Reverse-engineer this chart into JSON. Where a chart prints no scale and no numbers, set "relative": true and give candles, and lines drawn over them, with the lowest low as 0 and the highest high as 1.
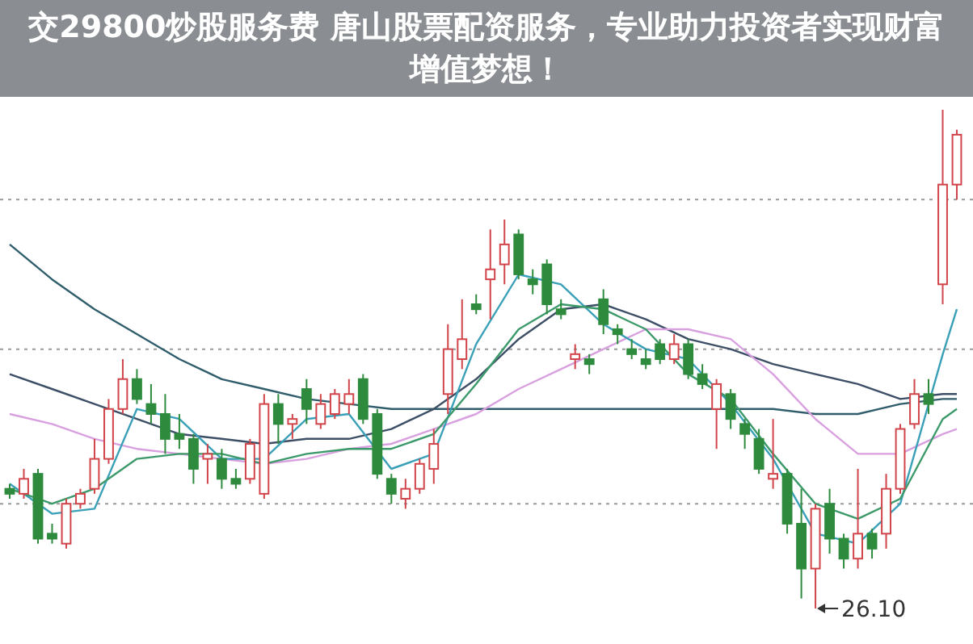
{
  "chart_data": {
    "type": "candlestick",
    "title": "交29800炒股服务费 唐山股票配资服务，专业助力投资者实现财富增值梦想！",
    "relative": true,
    "categories": [
      null,
      null,
      null,
      null,
      null,
      null,
      null,
      null,
      null,
      null,
      null,
      null,
      null,
      null,
      null,
      null,
      null,
      null,
      null,
      null,
      null,
      null,
      null,
      null,
      null,
      null,
      null,
      null,
      null,
      null,
      null,
      null,
      null,
      null,
      null,
      null,
      null,
      null,
      null,
      null,
      null,
      null,
      null,
      null,
      null,
      null,
      null,
      null,
      null,
      null,
      null,
      null,
      null,
      null,
      null,
      null,
      null,
      null,
      null,
      null,
      null,
      null,
      null,
      null,
      null,
      null,
      null,
      null
    ],
    "ohlc": [
      [
        0.24,
        0.25,
        0.22,
        0.23
      ],
      [
        0.23,
        0.28,
        0.22,
        0.26
      ],
      [
        0.27,
        0.28,
        0.13,
        0.14
      ],
      [
        0.15,
        0.17,
        0.13,
        0.14
      ],
      [
        0.13,
        0.22,
        0.12,
        0.21
      ],
      [
        0.21,
        0.24,
        0.2,
        0.23
      ],
      [
        0.24,
        0.34,
        0.23,
        0.3
      ],
      [
        0.3,
        0.42,
        0.29,
        0.4
      ],
      [
        0.4,
        0.5,
        0.39,
        0.46
      ],
      [
        0.46,
        0.48,
        0.41,
        0.42
      ],
      [
        0.41,
        0.45,
        0.37,
        0.39
      ],
      [
        0.39,
        0.43,
        0.31,
        0.34
      ],
      [
        0.35,
        0.39,
        0.32,
        0.34
      ],
      [
        0.34,
        0.35,
        0.25,
        0.28
      ],
      [
        0.3,
        0.33,
        0.25,
        0.31
      ],
      [
        0.3,
        0.32,
        0.24,
        0.26
      ],
      [
        0.26,
        0.28,
        0.24,
        0.25
      ],
      [
        0.26,
        0.34,
        0.25,
        0.33
      ],
      [
        0.23,
        0.43,
        0.22,
        0.41
      ],
      [
        0.41,
        0.43,
        0.33,
        0.37
      ],
      [
        0.37,
        0.39,
        0.34,
        0.38
      ],
      [
        0.44,
        0.46,
        0.37,
        0.4
      ],
      [
        0.37,
        0.43,
        0.36,
        0.41
      ],
      [
        0.39,
        0.44,
        0.38,
        0.43
      ],
      [
        0.41,
        0.46,
        0.39,
        0.43
      ],
      [
        0.46,
        0.47,
        0.37,
        0.38
      ],
      [
        0.39,
        0.4,
        0.26,
        0.27
      ],
      [
        0.26,
        0.27,
        0.21,
        0.23
      ],
      [
        0.22,
        0.26,
        0.2,
        0.24
      ],
      [
        0.24,
        0.3,
        0.23,
        0.29
      ],
      [
        0.28,
        0.36,
        0.25,
        0.33
      ],
      [
        0.43,
        0.57,
        0.39,
        0.52
      ],
      [
        0.5,
        0.62,
        0.48,
        0.54
      ],
      [
        0.61,
        0.63,
        0.59,
        0.6
      ],
      [
        0.66,
        0.76,
        0.58,
        0.68
      ],
      [
        0.69,
        0.78,
        0.65,
        0.73
      ],
      [
        0.75,
        0.76,
        0.66,
        0.67
      ],
      [
        0.66,
        0.68,
        0.63,
        0.65
      ],
      [
        0.69,
        0.7,
        0.59,
        0.61
      ],
      [
        0.6,
        0.62,
        0.58,
        0.59
      ],
      [
        0.5,
        0.53,
        0.48,
        0.51
      ],
      [
        0.5,
        0.51,
        0.47,
        0.49
      ],
      [
        0.62,
        0.64,
        0.55,
        0.57
      ],
      [
        0.56,
        0.57,
        0.53,
        0.55
      ],
      [
        0.52,
        0.54,
        0.5,
        0.51
      ],
      [
        0.5,
        0.52,
        0.48,
        0.49
      ],
      [
        0.53,
        0.54,
        0.49,
        0.5
      ],
      [
        0.5,
        0.55,
        0.49,
        0.53
      ],
      [
        0.53,
        0.54,
        0.46,
        0.47
      ],
      [
        0.47,
        0.49,
        0.44,
        0.45
      ],
      [
        0.4,
        0.46,
        0.32,
        0.45
      ],
      [
        0.43,
        0.44,
        0.36,
        0.38
      ],
      [
        0.37,
        0.38,
        0.32,
        0.35
      ],
      [
        0.34,
        0.36,
        0.27,
        0.28
      ],
      [
        0.26,
        0.38,
        0.24,
        0.27
      ],
      [
        0.27,
        0.28,
        0.15,
        0.17
      ],
      [
        0.17,
        0.24,
        0.02,
        0.08
      ],
      [
        0.08,
        0.21,
        0.0,
        0.2
      ],
      [
        0.21,
        0.24,
        0.11,
        0.14
      ],
      [
        0.14,
        0.15,
        0.08,
        0.1
      ],
      [
        0.1,
        0.28,
        0.08,
        0.15
      ],
      [
        0.15,
        0.16,
        0.1,
        0.12
      ],
      [
        0.15,
        0.27,
        0.12,
        0.24
      ],
      [
        0.24,
        0.37,
        0.23,
        0.36
      ],
      [
        0.37,
        0.46,
        0.36,
        0.43
      ],
      [
        0.43,
        0.46,
        0.39,
        0.41
      ],
      [
        0.65,
        1.0,
        0.61,
        0.85
      ],
      [
        0.85,
        0.96,
        0.82,
        0.95
      ]
    ],
    "series": [
      {
        "type": "line",
        "color": "#2f5d6b",
        "values": [
          0.73,
          null,
          null,
          0.66,
          null,
          null,
          0.6,
          null,
          null,
          0.55,
          null,
          null,
          0.5,
          null,
          null,
          0.46,
          null,
          null,
          0.44,
          null,
          null,
          0.42,
          null,
          null,
          0.41,
          null,
          null,
          0.4,
          null,
          null,
          0.4,
          null,
          null,
          0.4,
          null,
          null,
          0.4,
          null,
          null,
          0.4,
          null,
          null,
          0.4,
          null,
          null,
          0.4,
          null,
          null,
          0.4,
          null,
          null,
          0.4,
          null,
          null,
          0.4,
          null,
          null,
          0.39,
          null,
          null,
          0.39,
          null,
          null,
          0.41,
          null,
          null,
          0.42,
          0.42
        ]
      },
      {
        "type": "line",
        "color": "#3d4f66",
        "values": [
          0.47,
          null,
          null,
          0.44,
          null,
          null,
          0.41,
          null,
          null,
          0.38,
          null,
          null,
          0.35,
          null,
          null,
          0.34,
          null,
          null,
          0.33,
          null,
          null,
          0.34,
          null,
          null,
          0.34,
          null,
          null,
          0.36,
          null,
          null,
          0.4,
          null,
          null,
          0.46,
          null,
          null,
          0.54,
          null,
          null,
          0.6,
          null,
          null,
          0.61,
          null,
          null,
          0.58,
          null,
          null,
          0.54,
          null,
          null,
          0.52,
          null,
          null,
          0.49,
          null,
          null,
          0.47,
          null,
          null,
          0.45,
          null,
          null,
          0.42,
          null,
          null,
          0.43,
          0.43
        ]
      },
      {
        "type": "line",
        "color": "#d9a0e0",
        "values": [
          0.39,
          null,
          null,
          0.37,
          null,
          null,
          0.34,
          null,
          null,
          0.32,
          null,
          null,
          0.31,
          null,
          null,
          0.3,
          null,
          null,
          0.29,
          null,
          null,
          0.3,
          null,
          null,
          0.32,
          null,
          null,
          0.33,
          null,
          null,
          0.36,
          null,
          null,
          0.39,
          null,
          null,
          0.44,
          null,
          null,
          0.48,
          null,
          null,
          0.52,
          null,
          null,
          0.56,
          null,
          null,
          0.56,
          null,
          null,
          0.54,
          null,
          null,
          0.47,
          null,
          null,
          0.38,
          null,
          null,
          0.31,
          null,
          null,
          0.31,
          null,
          null,
          0.35,
          0.36
        ]
      },
      {
        "type": "line",
        "color": "#3aa0b8",
        "values": [
          0.25,
          null,
          null,
          0.19,
          null,
          null,
          0.2,
          null,
          null,
          0.4,
          null,
          null,
          0.38,
          null,
          null,
          0.3,
          null,
          null,
          0.3,
          null,
          null,
          0.38,
          null,
          null,
          0.39,
          null,
          null,
          0.28,
          null,
          null,
          0.31,
          null,
          null,
          0.53,
          null,
          null,
          0.67,
          null,
          null,
          0.65,
          null,
          null,
          0.57,
          null,
          null,
          0.52,
          null,
          null,
          0.5,
          null,
          null,
          0.41,
          null,
          null,
          0.3,
          null,
          null,
          0.15,
          null,
          null,
          0.13,
          null,
          null,
          0.21,
          null,
          null,
          0.51,
          0.6
        ]
      },
      {
        "type": "line",
        "color": "#3c9a6a",
        "values": [
          0.24,
          null,
          null,
          0.21,
          null,
          null,
          0.24,
          null,
          null,
          0.3,
          null,
          null,
          0.31,
          null,
          null,
          0.31,
          null,
          null,
          0.29,
          null,
          null,
          0.31,
          null,
          null,
          0.32,
          null,
          null,
          0.32,
          null,
          null,
          0.35,
          null,
          null,
          0.45,
          null,
          null,
          0.56,
          null,
          null,
          0.61,
          null,
          null,
          0.6,
          null,
          null,
          0.56,
          null,
          null,
          0.47,
          null,
          null,
          0.42,
          null,
          null,
          0.31,
          null,
          null,
          0.21,
          null,
          null,
          0.18,
          null,
          null,
          0.22,
          null,
          null,
          0.38,
          0.4
        ]
      }
    ],
    "ref_lines": [
      {
        "axis": "y",
        "value": 0.82,
        "color": "#999999",
        "line_style": "dotted"
      },
      {
        "axis": "y",
        "value": 0.52,
        "color": "#999999",
        "line_style": "dotted"
      },
      {
        "axis": "y",
        "value": 0.21,
        "color": "#999999",
        "line_style": "dotted"
      }
    ],
    "annotations": [
      "26.10"
    ]
  }
}
